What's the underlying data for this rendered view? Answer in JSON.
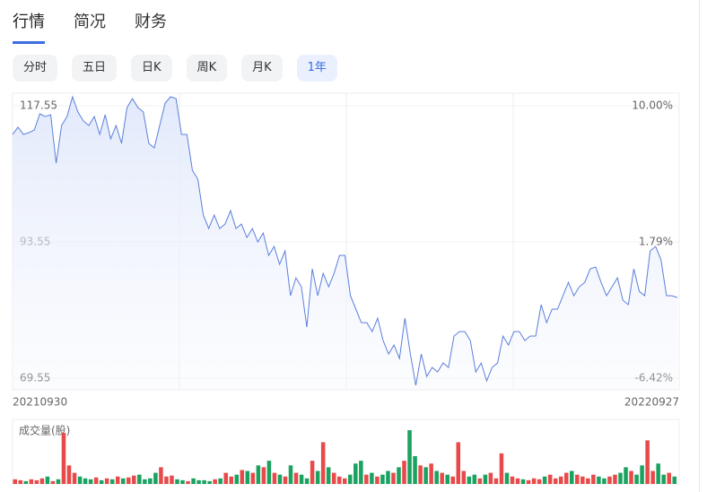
{
  "tabs": [
    "行情",
    "简况",
    "财务"
  ],
  "periods": [
    "分时",
    "五日",
    "日K",
    "周K",
    "月K",
    "1年"
  ],
  "chart_data": [
    {
      "type": "line",
      "color": "#5b7fdb",
      "grid": true,
      "categories": [
        "20210930",
        null,
        null,
        null,
        null,
        null,
        null,
        null,
        null,
        null,
        null,
        null,
        null,
        null,
        null,
        null,
        null,
        null,
        null,
        null,
        null,
        null,
        null,
        null,
        null,
        null,
        null,
        null,
        null,
        null,
        null,
        null,
        null,
        null,
        null,
        null,
        null,
        null,
        null,
        null,
        null,
        null,
        null,
        null,
        null,
        null,
        null,
        null,
        null,
        null,
        null,
        null,
        null,
        null,
        null,
        null,
        null,
        null,
        null,
        null,
        null,
        null,
        null,
        null,
        null,
        null,
        null,
        null,
        null,
        null,
        null,
        null,
        null,
        null,
        null,
        null,
        null,
        null,
        null,
        null,
        null,
        null,
        null,
        null,
        null,
        null,
        null,
        null,
        null,
        null,
        null,
        null,
        null,
        null,
        null,
        null,
        null,
        null,
        null,
        null,
        null,
        null,
        null,
        null,
        null,
        null,
        null,
        null,
        null,
        null,
        null,
        null,
        null,
        null,
        null,
        null,
        null,
        null,
        null,
        null,
        null,
        null,
        "20220927"
      ],
      "values": [
        112.5,
        113.76,
        112.5,
        112.81,
        113.29,
        116.13,
        115.66,
        115.97,
        107.44,
        114.08,
        115.66,
        119.13,
        116.44,
        114.87,
        114.08,
        115.66,
        112.5,
        115.97,
        111.71,
        114.08,
        110.92,
        117.23,
        118.81,
        117.23,
        116.44,
        110.92,
        110.13,
        114.08,
        118.02,
        119.13,
        118.81,
        112.5,
        112.5,
        106.18,
        104.6,
        98.29,
        95.92,
        98.29,
        95.92,
        96.71,
        99.08,
        95.92,
        96.71,
        94.34,
        95.92,
        93.55,
        95.13,
        91.18,
        92.76,
        89.6,
        91.97,
        84.08,
        87.23,
        85.65,
        78.55,
        88.81,
        84.08,
        88.02,
        85.65,
        88.02,
        91.18,
        91.18,
        84.08,
        81.71,
        79.34,
        79.34,
        77.76,
        80.13,
        76.18,
        73.81,
        75.39,
        73.02,
        80.13,
        73.81,
        68.29,
        73.81,
        69.86,
        71.44,
        70.65,
        72.23,
        71.44,
        76.97,
        77.76,
        77.76,
        76.18,
        70.65,
        72.23,
        69.07,
        71.44,
        72.23,
        76.97,
        75.39,
        77.76,
        77.76,
        76.18,
        76.97,
        76.97,
        82.5,
        79.34,
        81.71,
        81.71,
        84.08,
        86.44,
        84.08,
        85.65,
        86.44,
        88.81,
        89.13,
        86.44,
        84.08,
        85.65,
        87.23,
        83.29,
        82.5,
        88.81,
        84.86,
        84.08,
        91.97,
        92.76,
        90.39,
        84.08,
        84.08,
        83.76
      ],
      "ylim": [
        67.5,
        119.76
      ],
      "yticks": [
        69.55,
        93.55,
        117.55
      ],
      "y2lim": [
        -7.122,
        10.756
      ],
      "y2ticks": [
        {
          "value": -6.42,
          "label": "-6.42%"
        },
        {
          "value": 1.79,
          "label": "1.79%"
        },
        {
          "value": 10,
          "label": "10.00%"
        }
      ]
    },
    {
      "type": "bar",
      "title": "成交量(股)",
      "up_color": "#e84a4a",
      "down_color": "#1aa260",
      "values": [
        5,
        4,
        3,
        5,
        4,
        6,
        8,
        3,
        5,
        55,
        20,
        12,
        8,
        6,
        5,
        7,
        4,
        6,
        5,
        8,
        6,
        7,
        9,
        10,
        5,
        6,
        12,
        18,
        8,
        9,
        5,
        4,
        3,
        6,
        4,
        4,
        3,
        5,
        6,
        12,
        8,
        10,
        15,
        14,
        12,
        20,
        18,
        25,
        12,
        10,
        8,
        20,
        12,
        10,
        6,
        25,
        14,
        45,
        18,
        12,
        8,
        6,
        10,
        22,
        25,
        10,
        12,
        8,
        10,
        14,
        12,
        18,
        25,
        58,
        30,
        20,
        18,
        22,
        14,
        12,
        10,
        8,
        45,
        14,
        8,
        10,
        6,
        10,
        12,
        6,
        33,
        12,
        8,
        6,
        5,
        4,
        6,
        5,
        8,
        10,
        6,
        8,
        12,
        14,
        10,
        8,
        6,
        10,
        8,
        6,
        8,
        10,
        12,
        18,
        14,
        10,
        20,
        47,
        14,
        22,
        10,
        12,
        8
      ]
    }
  ]
}
